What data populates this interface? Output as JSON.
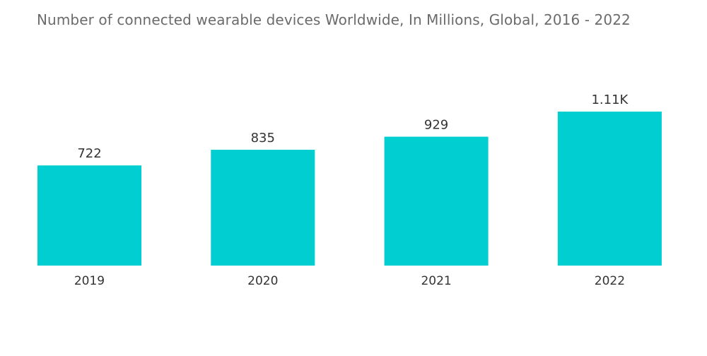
{
  "chart_data": {
    "type": "bar",
    "title": "Number of connected wearable devices Worldwide, In Millions, Global, 2016 - 2022",
    "categories": [
      "2019",
      "2020",
      "2021",
      "2022"
    ],
    "values": [
      722,
      835,
      929,
      1110
    ],
    "data_labels": [
      "722",
      "835",
      "929",
      "1.11K"
    ],
    "xlabel": "",
    "ylabel": "",
    "ylim": [
      0,
      1110
    ],
    "grid": false,
    "legend": "none",
    "bar_color": "#00CED1"
  }
}
